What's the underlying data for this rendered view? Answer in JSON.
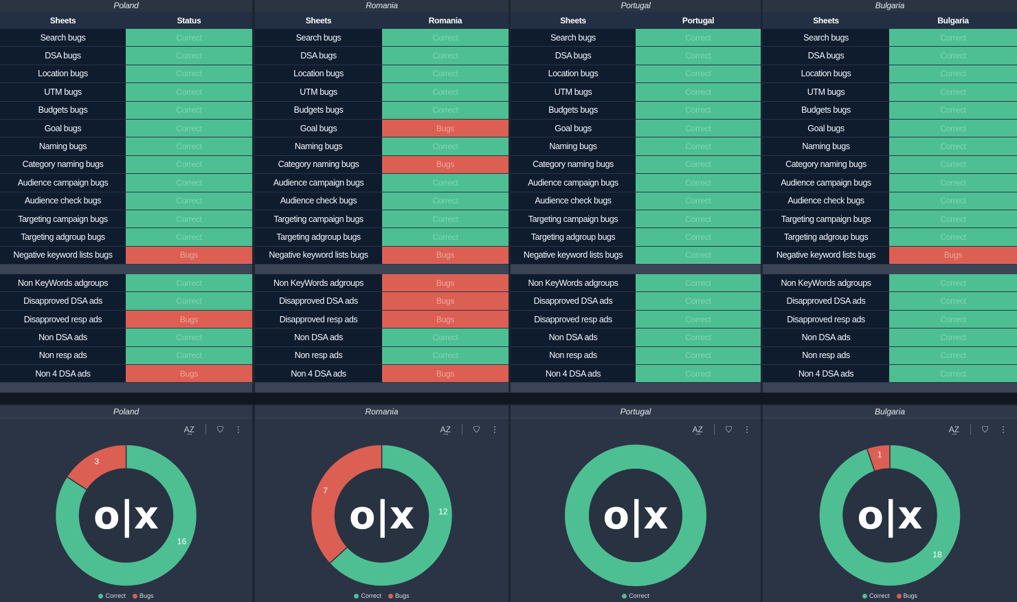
{
  "colors": {
    "correct": "#4ebf93",
    "bugs": "#dc5f54",
    "hole": "#283241"
  },
  "header": {
    "sheets_label": "Sheets"
  },
  "panels": [
    {
      "title": "Poland",
      "status_header": "Status",
      "group1": [
        "Correct",
        "Correct",
        "Correct",
        "Correct",
        "Correct",
        "Correct",
        "Correct",
        "Correct",
        "Correct",
        "Correct",
        "Correct",
        "Correct",
        "Bugs"
      ],
      "group2": [
        "Correct",
        "Correct",
        "Bugs",
        "Correct",
        "Correct",
        "Bugs"
      ]
    },
    {
      "title": "Romania",
      "status_header": "Romania",
      "group1": [
        "Correct",
        "Correct",
        "Correct",
        "Correct",
        "Correct",
        "Bugs",
        "Correct",
        "Bugs",
        "Correct",
        "Correct",
        "Correct",
        "Correct",
        "Bugs"
      ],
      "group2": [
        "Bugs",
        "Bugs",
        "Bugs",
        "Correct",
        "Correct",
        "Bugs"
      ]
    },
    {
      "title": "Portugal",
      "status_header": "Portugal",
      "group1": [
        "Correct",
        "Correct",
        "Correct",
        "Correct",
        "Correct",
        "Correct",
        "Correct",
        "Correct",
        "Correct",
        "Correct",
        "Correct",
        "Correct",
        "Correct"
      ],
      "group2": [
        "Correct",
        "Correct",
        "Correct",
        "Correct",
        "Correct",
        "Correct"
      ]
    },
    {
      "title": "Bulgaria",
      "status_header": "Bulgaria",
      "group1": [
        "Correct",
        "Correct",
        "Correct",
        "Correct",
        "Correct",
        "Correct",
        "Correct",
        "Correct",
        "Correct",
        "Correct",
        "Correct",
        "Correct",
        "Bugs"
      ],
      "group2": [
        "Correct",
        "Correct",
        "Correct",
        "Correct",
        "Correct",
        "Correct"
      ]
    }
  ],
  "sheets_group1": [
    "Search bugs",
    "DSA bugs",
    "Location bugs",
    "UTM bugs",
    "Budgets bugs",
    "Goal bugs",
    "Naming bugs",
    "Category naming bugs",
    "Audience campaign bugs",
    "Audience check bugs",
    "Targeting campaign bugs",
    "Targeting adgroup bugs",
    "Negative keyword lists bugs"
  ],
  "sheets_group2": [
    "Non KeyWords adgroups",
    "Disapproved DSA ads",
    "Disapproved resp ads",
    "Non DSA ads",
    "Non resp ads",
    "Non 4 DSA ads"
  ],
  "chart_tools": {
    "sort": "A͢Z",
    "filter": "⛉",
    "more": "⋮"
  },
  "logo_text": "o|x",
  "chart_data": [
    {
      "type": "pie",
      "title": "Poland",
      "categories": [
        "Correct",
        "Bugs"
      ],
      "values": [
        16,
        3
      ],
      "legend": [
        "Correct",
        "Bugs"
      ]
    },
    {
      "type": "pie",
      "title": "Romania",
      "categories": [
        "Correct",
        "Bugs"
      ],
      "values": [
        12,
        7
      ],
      "legend": [
        "Correct",
        "Bugs"
      ]
    },
    {
      "type": "pie",
      "title": "Portugal",
      "categories": [
        "Correct"
      ],
      "values": [
        19
      ],
      "legend": [
        "Correct"
      ]
    },
    {
      "type": "pie",
      "title": "Bulgaria",
      "categories": [
        "Correct",
        "Bugs"
      ],
      "values": [
        18,
        1
      ],
      "legend": [
        "Correct",
        "Bugs"
      ]
    }
  ]
}
